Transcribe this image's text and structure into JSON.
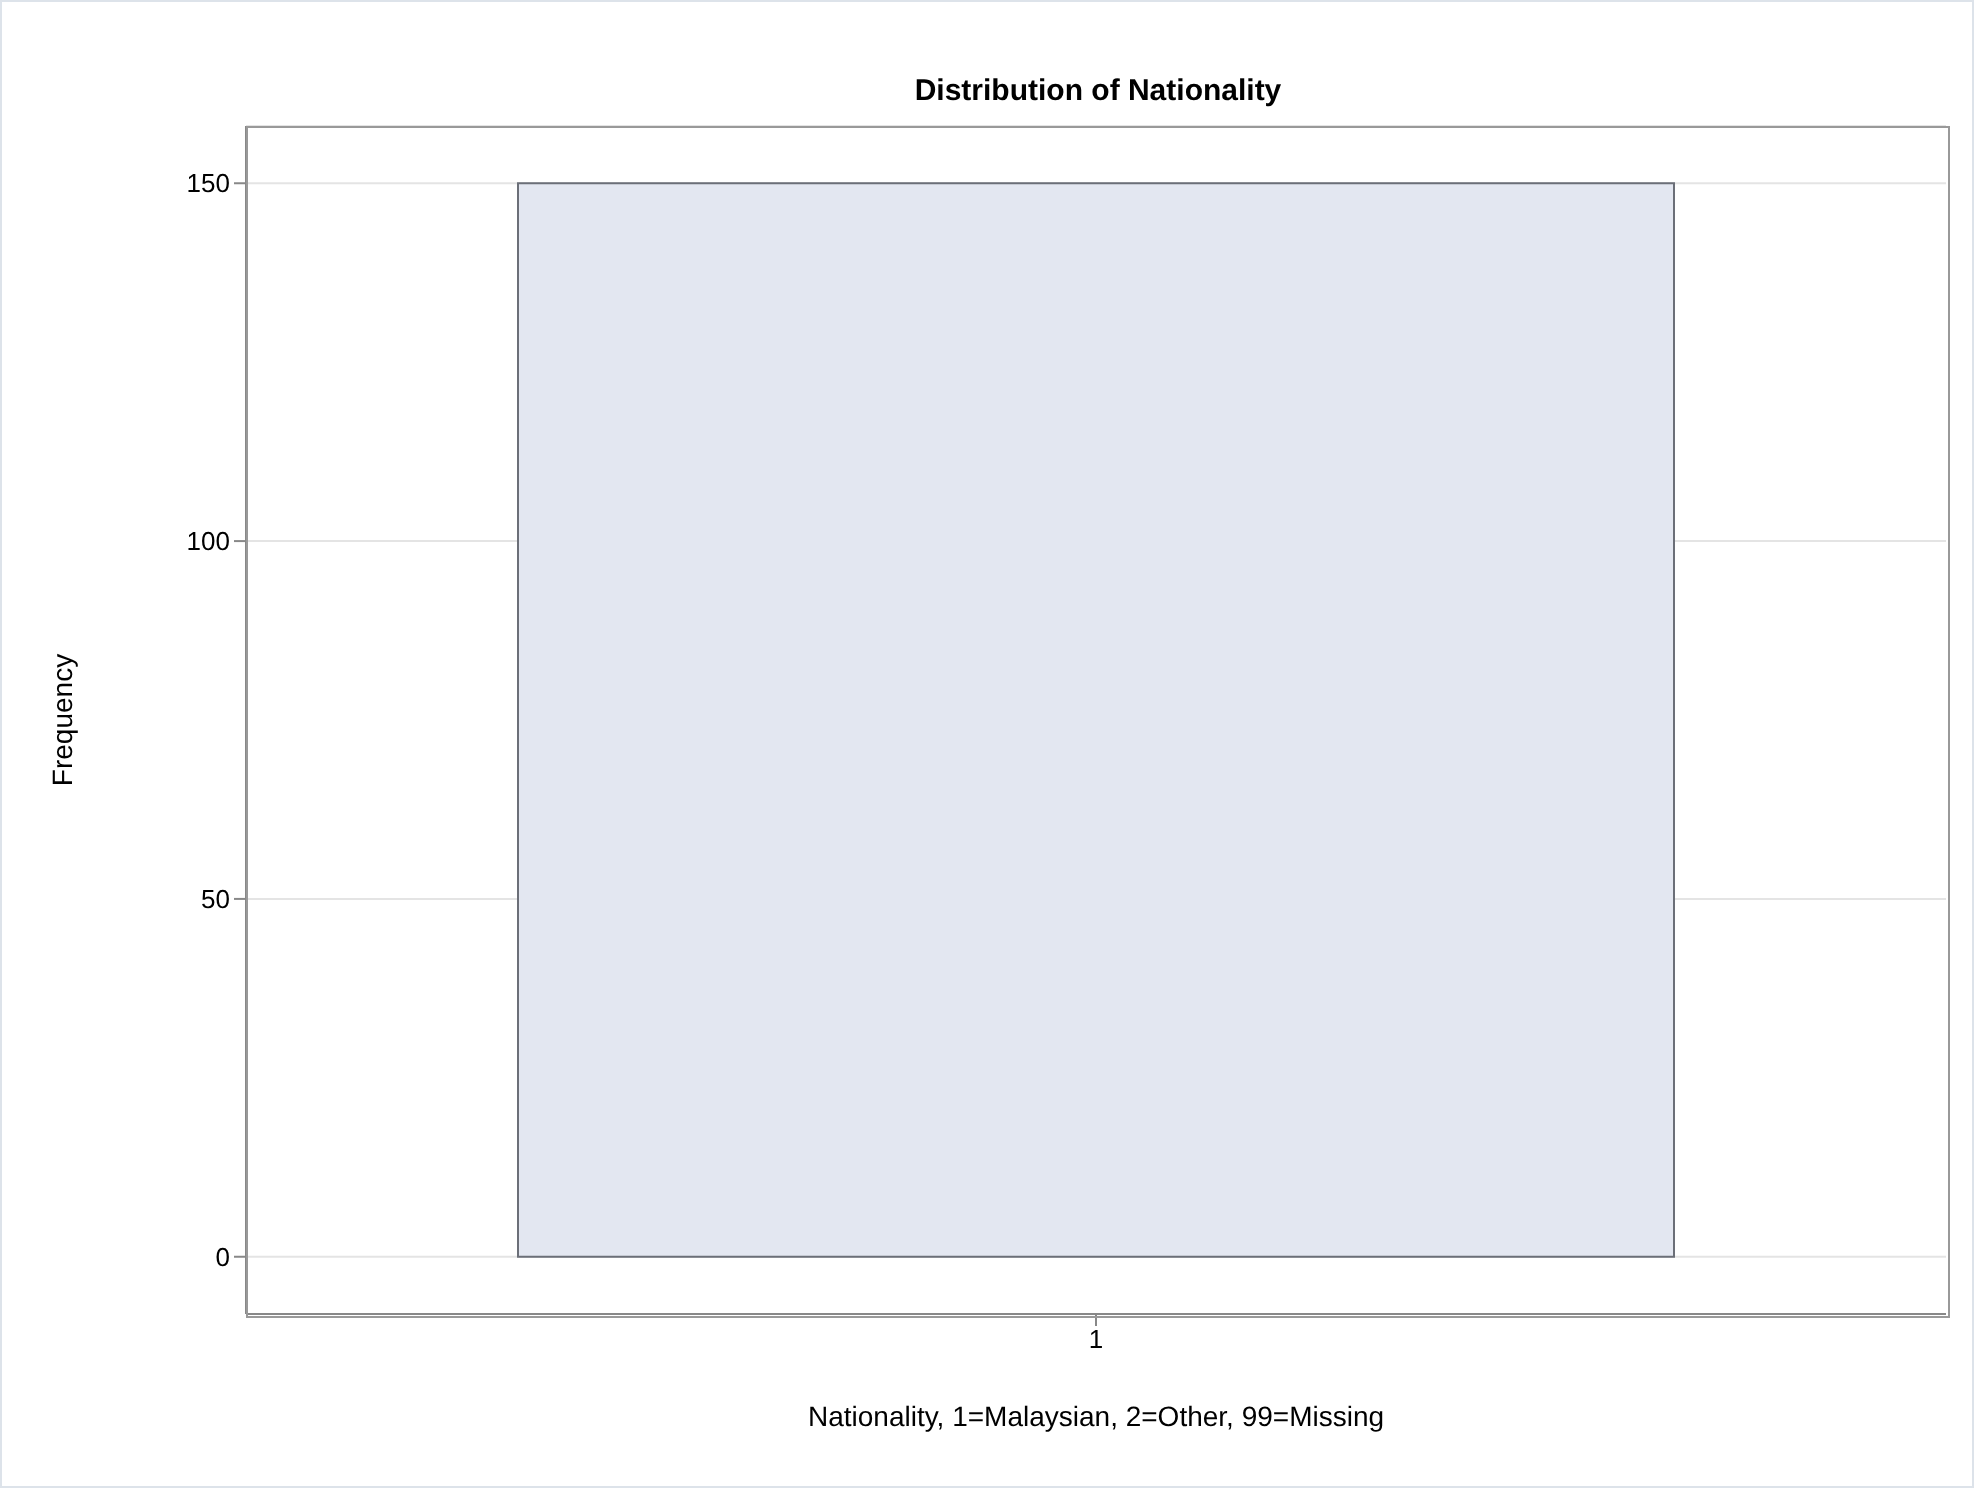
{
  "chart_data": {
    "type": "bar",
    "title": "Distribution of Nationality",
    "xlabel": "Nationality, 1=Malaysian, 2=Other, 99=Missing",
    "ylabel": "Frequency",
    "categories": [
      "1"
    ],
    "values": [
      150
    ],
    "color": "#e3e7f1",
    "ylim": [
      -8,
      158
    ],
    "yticks": [
      0,
      50,
      100,
      150
    ],
    "grid": "y"
  }
}
